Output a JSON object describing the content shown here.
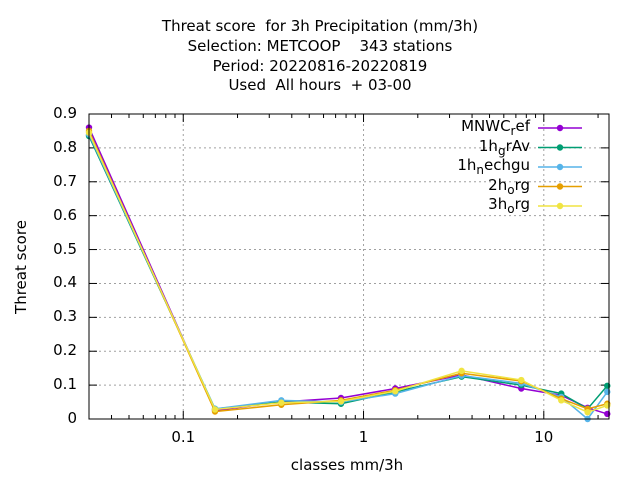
{
  "chart_data": {
    "type": "line",
    "title_lines": [
      "Threat score  for 3h Precipitation (mm/3h)",
      "Selection: METCOOP    343 stations",
      "Period: 20220816-20220819",
      "Used  All hours  + 03-00"
    ],
    "xlabel": "classes mm/3h",
    "ylabel": "Threat score",
    "x_scale": "log",
    "xlim": [
      0.03,
      23
    ],
    "ylim": [
      0,
      0.9
    ],
    "x_ticks": [
      {
        "v": 0.1,
        "label": "0.1"
      },
      {
        "v": 1,
        "label": "1"
      },
      {
        "v": 10,
        "label": "10"
      }
    ],
    "y_ticks": [
      {
        "v": 0,
        "label": "0"
      },
      {
        "v": 0.1,
        "label": "0.1"
      },
      {
        "v": 0.2,
        "label": "0.2"
      },
      {
        "v": 0.3,
        "label": "0.3"
      },
      {
        "v": 0.4,
        "label": "0.4"
      },
      {
        "v": 0.5,
        "label": "0.5"
      },
      {
        "v": 0.6,
        "label": "0.6"
      },
      {
        "v": 0.7,
        "label": "0.7"
      },
      {
        "v": 0.8,
        "label": "0.8"
      },
      {
        "v": 0.9,
        "label": "0.9"
      }
    ],
    "grid": true,
    "legend_position": "top-right",
    "x": [
      0.03,
      0.15,
      0.35,
      0.75,
      1.5,
      3.5,
      7.5,
      12.5,
      17.5,
      22.5
    ],
    "series": [
      {
        "name": "MNWC",
        "sub": "r",
        "tail": "ef",
        "color": "#9400d3",
        "values": [
          0.86,
          0.025,
          0.05,
          0.062,
          0.09,
          0.13,
          0.09,
          0.07,
          0.033,
          0.015
        ]
      },
      {
        "name": "1h",
        "sub": "g",
        "tail": "rAv",
        "color": "#009e73",
        "values": [
          0.835,
          0.03,
          0.05,
          0.045,
          0.08,
          0.125,
          0.1,
          0.075,
          0.03,
          0.098
        ]
      },
      {
        "name": "1h",
        "sub": "n",
        "tail": "echgu",
        "color": "#56b4e9",
        "values": [
          0.84,
          0.03,
          0.055,
          0.05,
          0.075,
          0.128,
          0.105,
          0.065,
          0.0,
          0.08
        ]
      },
      {
        "name": "2h",
        "sub": "o",
        "tail": "rg",
        "color": "#e69f00",
        "values": [
          0.85,
          0.022,
          0.042,
          0.055,
          0.085,
          0.135,
          0.112,
          0.06,
          0.03,
          0.045
        ]
      },
      {
        "name": "3h",
        "sub": "o",
        "tail": "rg",
        "color": "#f0e442",
        "values": [
          0.845,
          0.028,
          0.048,
          0.052,
          0.082,
          0.142,
          0.115,
          0.055,
          0.02,
          0.04
        ]
      }
    ]
  }
}
